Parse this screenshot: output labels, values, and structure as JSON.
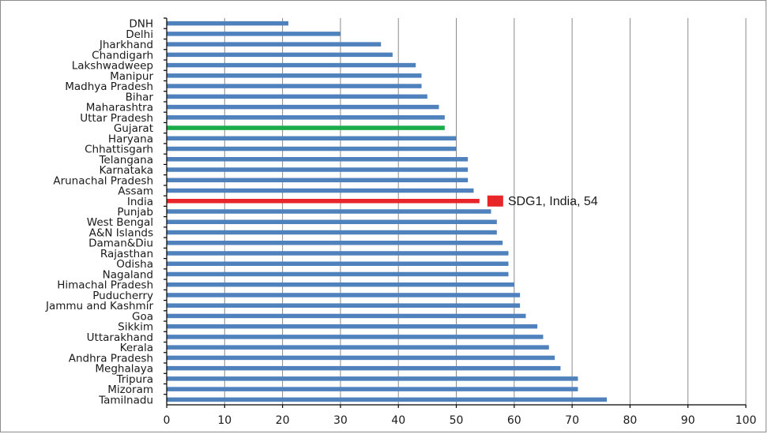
{
  "chart_data": {
    "type": "bar",
    "orientation": "horizontal",
    "categories": [
      "DNH",
      "Delhi",
      "Jharkhand",
      "Chandigarh",
      "Lakshwadweep",
      "Manipur",
      "Madhya Pradesh",
      "Bihar",
      "Maharashtra",
      "Uttar Pradesh",
      "Gujarat",
      "Haryana",
      "Chhattisgarh",
      "Telangana",
      "Karnataka",
      "Arunachal Pradesh",
      "Assam",
      "India",
      "Punjab",
      "West Bengal",
      "A&N Islands",
      "Daman&Diu",
      "Rajasthan",
      "Odisha",
      "Nagaland",
      "Himachal Pradesh",
      "Puducherry",
      "Jammu and Kashmir",
      "Goa",
      "Sikkim",
      "Uttarakhand",
      "Kerala",
      "Andhra Pradesh",
      "Meghalaya",
      "Tripura",
      "Mizoram",
      "Tamilnadu"
    ],
    "values": [
      21,
      30,
      37,
      39,
      43,
      44,
      44,
      45,
      47,
      48,
      48,
      50,
      50,
      52,
      52,
      52,
      53,
      54,
      56,
      57,
      57,
      58,
      59,
      59,
      59,
      60,
      61,
      61,
      62,
      64,
      65,
      66,
      67,
      68,
      71,
      71,
      76
    ],
    "highlights": {
      "Gujarat": "#1aab4a",
      "India": "#e8262a"
    },
    "default_color": "#4f81bd",
    "xlim": [
      0,
      100
    ],
    "xticks": [
      "0",
      "10",
      "20",
      "30",
      "40",
      "50",
      "60",
      "70",
      "80",
      "90",
      "100"
    ],
    "grid": true,
    "annotation": {
      "text": "SDG1, India, 54",
      "category": "India",
      "marker_color": "#e8262a"
    },
    "title": "",
    "xlabel": "",
    "ylabel": ""
  }
}
